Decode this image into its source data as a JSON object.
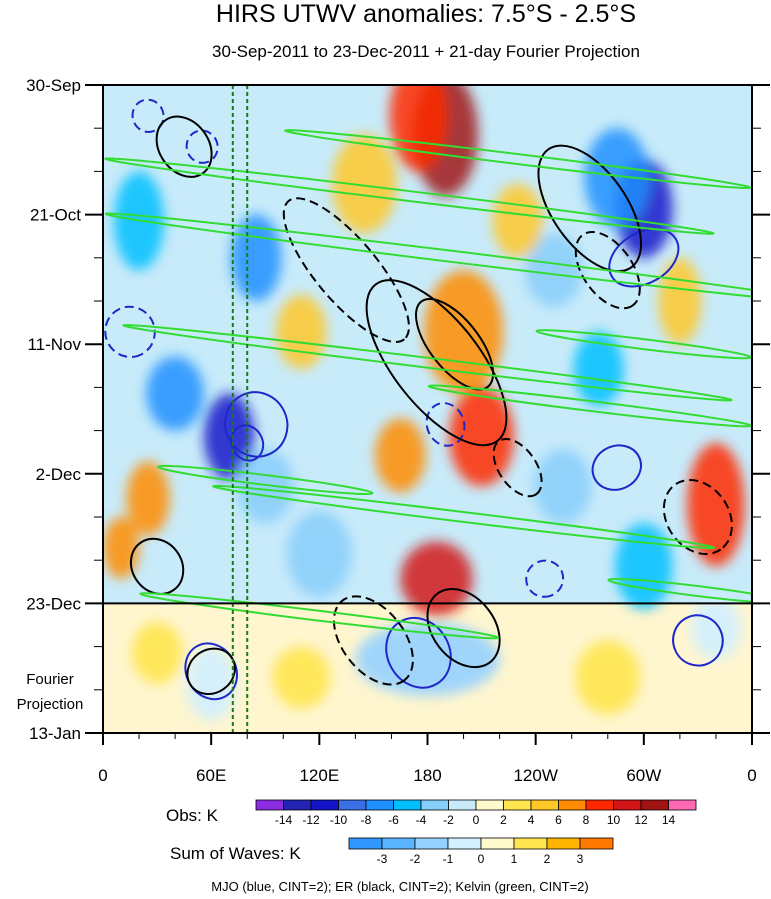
{
  "chart_data": {
    "type": "heatmap",
    "title": "HIRS UTWV anomalies: 7.5°S - 2.5°S",
    "subtitle": "30-Sep-2011 to 23-Dec-2011 + 21-day Fourier Projection",
    "x_axis": {
      "ticks": [
        "0",
        "60E",
        "120E",
        "180",
        "120W",
        "60W",
        "0"
      ],
      "tick_degrees_east": [
        0,
        60,
        120,
        180,
        240,
        300,
        360
      ],
      "range_degrees_east": [
        0,
        360
      ]
    },
    "y_axis": {
      "ticks": [
        "30-Sep",
        "21-Oct",
        "11-Nov",
        "2-Dec",
        "23-Dec",
        "13-Jan"
      ],
      "tick_days_from_start": [
        0,
        21,
        42,
        63,
        84,
        105
      ],
      "range_days": [
        0,
        105
      ],
      "reversed": true
    },
    "observation_end_day": 84,
    "projection_label_line1": "Fourier",
    "projection_label_line2": "Projection",
    "reference_lines_degrees_east": [
      72,
      80
    ],
    "obs_colorbar": {
      "label": "Obs: K",
      "levels": [
        "-14",
        "-12",
        "-10",
        "-8",
        "-6",
        "-4",
        "-2",
        "0",
        "2",
        "4",
        "6",
        "8",
        "10",
        "12",
        "14"
      ],
      "colors": [
        "#8b2be2",
        "#2323b4",
        "#1414c8",
        "#3c6ee6",
        "#1e90ff",
        "#00bfff",
        "#87cefa",
        "#c8ebfa",
        "#fffacd",
        "#ffe650",
        "#ffc828",
        "#ff8c00",
        "#ff2800",
        "#d21414",
        "#a01414",
        "#ff69b4"
      ]
    },
    "waves_colorbar": {
      "label": "Sum of Waves: K",
      "levels": [
        "-3",
        "-2",
        "-1",
        "0",
        "1",
        "2",
        "3"
      ],
      "colors": [
        "#3296ff",
        "#5ab4ff",
        "#96d2ff",
        "#d2f0ff",
        "#fffacd",
        "#ffe650",
        "#ffb400",
        "#ff7800"
      ]
    },
    "contour_legend": "MJO (blue, CINT=2); ER (black, CINT=2); Kelvin (green, CINT=2)",
    "field_blobs": [
      {
        "lon": 190,
        "day": 8,
        "value": 12,
        "rx": 18,
        "ry": 10
      },
      {
        "lon": 175,
        "day": 5,
        "value": 9,
        "rx": 16,
        "ry": 9
      },
      {
        "lon": 145,
        "day": 16,
        "value": 5,
        "rx": 18,
        "ry": 8
      },
      {
        "lon": 300,
        "day": 20,
        "value": -12,
        "rx": 16,
        "ry": 8
      },
      {
        "lon": 285,
        "day": 15,
        "value": -8,
        "rx": 18,
        "ry": 8
      },
      {
        "lon": 85,
        "day": 28,
        "value": -7,
        "rx": 14,
        "ry": 7
      },
      {
        "lon": 20,
        "day": 22,
        "value": -6,
        "rx": 14,
        "ry": 8
      },
      {
        "lon": 200,
        "day": 40,
        "value": 6,
        "rx": 22,
        "ry": 10
      },
      {
        "lon": 70,
        "day": 57,
        "value": -12,
        "rx": 14,
        "ry": 7
      },
      {
        "lon": 40,
        "day": 50,
        "value": -8,
        "rx": 16,
        "ry": 6
      },
      {
        "lon": 210,
        "day": 57,
        "value": 8,
        "rx": 18,
        "ry": 8
      },
      {
        "lon": 165,
        "day": 60,
        "value": 6,
        "rx": 14,
        "ry": 6
      },
      {
        "lon": 275,
        "day": 46,
        "value": -6,
        "rx": 14,
        "ry": 6
      },
      {
        "lon": 340,
        "day": 68,
        "value": 8,
        "rx": 16,
        "ry": 10
      },
      {
        "lon": 25,
        "day": 67,
        "value": 6,
        "rx": 12,
        "ry": 6
      },
      {
        "lon": 185,
        "day": 80,
        "value": 10,
        "rx": 20,
        "ry": 6
      },
      {
        "lon": 120,
        "day": 76,
        "value": -4,
        "rx": 18,
        "ry": 7
      },
      {
        "lon": 300,
        "day": 78,
        "value": -5,
        "rx": 16,
        "ry": 7
      },
      {
        "lon": 250,
        "day": 30,
        "value": -4,
        "rx": 16,
        "ry": 6
      },
      {
        "lon": 110,
        "day": 40,
        "value": 4,
        "rx": 14,
        "ry": 6
      },
      {
        "lon": 230,
        "day": 22,
        "value": 4,
        "rx": 14,
        "ry": 6
      },
      {
        "lon": 320,
        "day": 35,
        "value": 5,
        "rx": 12,
        "ry": 7
      },
      {
        "lon": 10,
        "day": 75,
        "value": 6,
        "rx": 10,
        "ry": 5
      },
      {
        "lon": 90,
        "day": 65,
        "value": -3,
        "rx": 16,
        "ry": 6
      },
      {
        "lon": 255,
        "day": 65,
        "value": -4,
        "rx": 16,
        "ry": 6
      }
    ],
    "projection_blobs": [
      {
        "lon": 180,
        "day": 93,
        "value": -1.5,
        "rx": 40,
        "ry": 6
      },
      {
        "lon": 60,
        "day": 97,
        "value": -1,
        "rx": 14,
        "ry": 6
      },
      {
        "lon": 110,
        "day": 96,
        "value": 1,
        "rx": 16,
        "ry": 5
      },
      {
        "lon": 280,
        "day": 96,
        "value": 1,
        "rx": 18,
        "ry": 6
      },
      {
        "lon": 30,
        "day": 92,
        "value": 1.5,
        "rx": 14,
        "ry": 5
      },
      {
        "lon": 340,
        "day": 88,
        "value": -1,
        "rx": 14,
        "ry": 5
      }
    ],
    "wave_contours": {
      "mjo_blue": [
        {
          "lon": 25,
          "day": 5,
          "rx": 9,
          "ry": 2.5,
          "angle": 70,
          "dashed": true
        },
        {
          "lon": 55,
          "day": 10,
          "rx": 9,
          "ry": 2.5,
          "angle": 70,
          "dashed": true
        },
        {
          "lon": 85,
          "day": 55,
          "rx": 18,
          "ry": 5,
          "angle": 65,
          "dashed": false
        },
        {
          "lon": 80,
          "day": 58,
          "rx": 10,
          "ry": 2.5,
          "angle": 65,
          "dashed": false
        },
        {
          "lon": 300,
          "day": 28,
          "rx": 14,
          "ry": 6,
          "angle": 60,
          "dashed": false
        },
        {
          "lon": 285,
          "day": 62,
          "rx": 12,
          "ry": 4,
          "angle": 65,
          "dashed": false
        },
        {
          "lon": 15,
          "day": 40,
          "rx": 14,
          "ry": 4,
          "angle": 65,
          "dashed": true
        },
        {
          "lon": 175,
          "day": 92,
          "rx": 20,
          "ry": 5,
          "angle": 60,
          "dashed": false
        },
        {
          "lon": 60,
          "day": 95,
          "rx": 16,
          "ry": 4,
          "angle": 60,
          "dashed": false
        },
        {
          "lon": 330,
          "day": 90,
          "rx": 14,
          "ry": 4,
          "angle": 65,
          "dashed": false
        },
        {
          "lon": 245,
          "day": 80,
          "rx": 10,
          "ry": 3,
          "angle": 70,
          "dashed": true
        },
        {
          "lon": 190,
          "day": 55,
          "rx": 12,
          "ry": 3,
          "angle": 70,
          "dashed": true
        }
      ],
      "er_black": [
        {
          "lon": 185,
          "day": 45,
          "rx": 55,
          "ry": 7,
          "angle": 52,
          "dashed": false
        },
        {
          "lon": 195,
          "day": 42,
          "rx": 30,
          "ry": 4,
          "angle": 52,
          "dashed": false
        },
        {
          "lon": 270,
          "day": 20,
          "rx": 40,
          "ry": 6,
          "angle": 55,
          "dashed": false
        },
        {
          "lon": 280,
          "day": 30,
          "rx": 24,
          "ry": 4,
          "angle": 55,
          "dashed": true
        },
        {
          "lon": 135,
          "day": 30,
          "rx": 50,
          "ry": 5,
          "angle": 50,
          "dashed": true
        },
        {
          "lon": 45,
          "day": 10,
          "rx": 18,
          "ry": 4,
          "angle": 55,
          "dashed": false
        },
        {
          "lon": 30,
          "day": 78,
          "rx": 16,
          "ry": 4,
          "angle": 55,
          "dashed": false
        },
        {
          "lon": 150,
          "day": 90,
          "rx": 28,
          "ry": 5,
          "angle": 52,
          "dashed": true
        },
        {
          "lon": 200,
          "day": 88,
          "rx": 24,
          "ry": 5,
          "angle": 52,
          "dashed": false
        },
        {
          "lon": 330,
          "day": 70,
          "rx": 22,
          "ry": 5,
          "angle": 55,
          "dashed": true
        },
        {
          "lon": 60,
          "day": 95,
          "rx": 12,
          "ry": 4,
          "angle": 55,
          "dashed": false
        },
        {
          "lon": 230,
          "day": 62,
          "rx": 18,
          "ry": 3,
          "angle": 55,
          "dashed": true
        }
      ],
      "kelvin_green": [
        {
          "lon": 200,
          "day": 28,
          "rx": 200,
          "ry": 0.9,
          "angle": 7
        },
        {
          "lon": 170,
          "day": 18,
          "rx": 170,
          "ry": 0.8,
          "angle": 7
        },
        {
          "lon": 230,
          "day": 12,
          "rx": 130,
          "ry": 0.8,
          "angle": 7
        },
        {
          "lon": 180,
          "day": 45,
          "rx": 170,
          "ry": 0.8,
          "angle": 7
        },
        {
          "lon": 270,
          "day": 52,
          "rx": 90,
          "ry": 0.8,
          "angle": 7
        },
        {
          "lon": 200,
          "day": 70,
          "rx": 140,
          "ry": 0.8,
          "angle": 7
        },
        {
          "lon": 120,
          "day": 86,
          "rx": 100,
          "ry": 0.8,
          "angle": 7
        },
        {
          "lon": 300,
          "day": 42,
          "rx": 60,
          "ry": 0.8,
          "angle": 7
        },
        {
          "lon": 90,
          "day": 64,
          "rx": 60,
          "ry": 0.8,
          "angle": 7
        },
        {
          "lon": 330,
          "day": 82,
          "rx": 50,
          "ry": 0.8,
          "angle": 7
        }
      ]
    }
  }
}
